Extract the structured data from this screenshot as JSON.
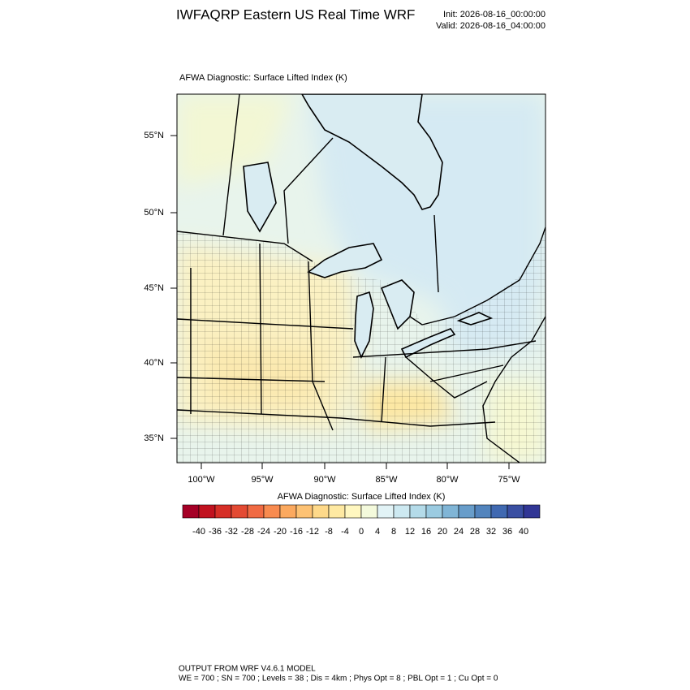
{
  "title": "IWFAQRP Eastern US Real Time WRF",
  "init": "Init: 2026-08-16_00:00:00",
  "valid": "Valid: 2026-08-16_04:00:00",
  "map": {
    "title": "AFWA Diagnostic: Surface Lifted Index   (K)",
    "lat_labels": [
      "55°N",
      "50°N",
      "45°N",
      "40°N",
      "35°N"
    ],
    "lon_labels": [
      "100°W",
      "95°W",
      "90°W",
      "85°W",
      "80°W",
      "75°W"
    ]
  },
  "colorbar": {
    "title": "AFWA Diagnostic: Surface Lifted Index  (K)",
    "ticks": [
      -40,
      -36,
      -32,
      -28,
      -24,
      -20,
      -16,
      -12,
      -8,
      -4,
      0,
      4,
      8,
      12,
      16,
      20,
      24,
      28,
      32,
      36,
      40
    ],
    "colors": [
      "#a50026",
      "#c1121f",
      "#d62f27",
      "#e34a33",
      "#f06a43",
      "#f88b50",
      "#fba95f",
      "#fdc274",
      "#fed98a",
      "#fee9a2",
      "#fff7c0",
      "#f4fadc",
      "#e2f3f6",
      "#cde9f1",
      "#b4dbe9",
      "#9bcbe1",
      "#80b5d6",
      "#689dca",
      "#5284bd",
      "#4069b1",
      "#3a4fa2",
      "#313695"
    ]
  },
  "footer": {
    "line1": "OUTPUT FROM WRF V4.6.1 MODEL",
    "line2": "WE = 700 ; SN = 700 ; Levels = 38 ; Dis = 4km ; Phys Opt = 8 ; PBL Opt = 1 ; Cu Opt = 0"
  }
}
